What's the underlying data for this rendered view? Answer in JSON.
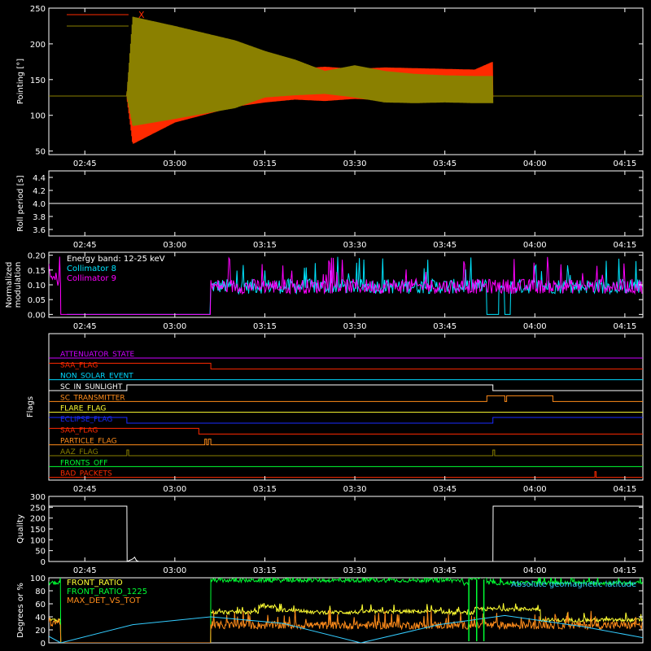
{
  "time_ticks": [
    "02:45",
    "03:00",
    "03:15",
    "03:30",
    "03:45",
    "04:00",
    "04:15"
  ],
  "chart_data": [
    {
      "type": "line",
      "ylabel": "Pointing [°]",
      "ylim": [
        45,
        250
      ],
      "yticks": [
        50,
        100,
        150,
        200,
        250
      ],
      "x_ticks": [
        "02:45",
        "03:00",
        "03:15",
        "03:30",
        "03:45",
        "04:00",
        "04:15"
      ],
      "legend": {
        "position": "top-left",
        "entries": [
          {
            "label": "X",
            "color": "#ff2a00"
          },
          {
            "label": "Y",
            "color": "#8a8000"
          }
        ]
      },
      "baseline": {
        "value": 127,
        "color": "#8a8000"
      },
      "series": [
        {
          "name": "X",
          "color": "#ff2a00",
          "kind": "band",
          "x": [
            "02:39",
            "02:52",
            "02:53",
            "03:00",
            "03:10",
            "03:15",
            "03:20",
            "03:25",
            "03:30",
            "03:35",
            "03:40",
            "03:45",
            "03:50",
            "03:53"
          ],
          "upper": [
            127,
            127,
            215,
            200,
            178,
            168,
            165,
            168,
            165,
            167,
            166,
            165,
            164,
            175
          ],
          "lower": [
            127,
            127,
            60,
            90,
            112,
            118,
            122,
            120,
            123,
            121,
            124,
            122,
            125,
            125
          ]
        },
        {
          "name": "Y",
          "color": "#8a8000",
          "kind": "band",
          "x": [
            "02:39",
            "02:52",
            "02:53",
            "03:00",
            "03:10",
            "03:15",
            "03:20",
            "03:25",
            "03:30",
            "03:35",
            "03:40",
            "03:45",
            "03:50",
            "03:53"
          ],
          "upper": [
            127,
            127,
            238,
            225,
            205,
            190,
            178,
            162,
            170,
            162,
            158,
            156,
            155,
            155
          ],
          "lower": [
            127,
            127,
            85,
            95,
            110,
            125,
            128,
            130,
            125,
            118,
            117,
            118,
            117,
            117
          ]
        }
      ]
    },
    {
      "type": "line",
      "ylabel": "Roll period [s]",
      "ylim": [
        3.5,
        4.5
      ],
      "yticks": [
        3.6,
        3.8,
        4.0,
        4.2,
        4.4
      ],
      "ytick_labels": [
        "3.6",
        "3.8",
        "4.0",
        "4.2",
        "4.4"
      ],
      "x_ticks": [
        "02:45",
        "03:00",
        "03:15",
        "03:30",
        "03:45",
        "04:00",
        "04:15"
      ],
      "series": [
        {
          "name": "",
          "color": "#ffffff",
          "x": [
            "02:39",
            "04:18"
          ],
          "values": [
            4.0,
            4.0
          ]
        }
      ]
    },
    {
      "type": "line",
      "ylabel": "Normalized modulation",
      "ylim": [
        -0.01,
        0.21
      ],
      "yticks": [
        0.0,
        0.05,
        0.1,
        0.15,
        0.2
      ],
      "ytick_labels": [
        "0.00",
        "0.05",
        "0.10",
        "0.15",
        "0.20"
      ],
      "x_ticks": [
        "02:45",
        "03:00",
        "03:15",
        "03:30",
        "03:45",
        "04:00",
        "04:15"
      ],
      "annotation": "Energy band: 12-25 keV",
      "legend": {
        "position": "top-left",
        "entries": [
          {
            "label": "Collimator 8",
            "color": "#00e5ff"
          },
          {
            "label": "Collimator 9",
            "color": "#ff00ff"
          }
        ]
      },
      "series": [
        {
          "name": "Collimator 8",
          "color": "#00e5ff",
          "noisy": true,
          "level": 0.095,
          "spread": 0.025,
          "segments": [
            [
              "02:42",
              "03:06",
              0
            ],
            [
              "03:06",
              "03:52",
              0.095
            ],
            [
              "03:52",
              "03:54",
              0
            ],
            [
              "03:54",
              "03:55",
              0.095
            ],
            [
              "03:55",
              "03:56",
              0
            ],
            [
              "03:56",
              "04:18",
              0.095
            ]
          ]
        },
        {
          "name": "Collimator 9",
          "color": "#ff00ff",
          "noisy": true,
          "level": 0.095,
          "spread": 0.025,
          "segments": [
            [
              "02:39",
              "02:41",
              0.12
            ],
            [
              "02:41",
              "03:06",
              0
            ],
            [
              "03:06",
              "04:18",
              0.095
            ]
          ]
        }
      ]
    },
    {
      "type": "step",
      "ylabel": "Flags",
      "x_ticks": [
        "02:45",
        "03:00",
        "03:15",
        "03:30",
        "03:45",
        "04:00",
        "04:15"
      ],
      "flags": [
        {
          "label": "ATTENUATOR_STATE",
          "color": "#cc00ff",
          "steps": []
        },
        {
          "label": "SAA_FLAG",
          "color": "#ff2a00",
          "steps": [
            [
              "02:39",
              1
            ],
            [
              "03:06",
              0
            ]
          ]
        },
        {
          "label": "NON_SOLAR_EVENT",
          "color": "#00d8ff",
          "steps": []
        },
        {
          "label": "SC_IN_SUNLIGHT",
          "color": "#ffffff",
          "steps": [
            [
              "02:39",
              0
            ],
            [
              "02:52",
              1
            ],
            [
              "03:53",
              0
            ]
          ]
        },
        {
          "label": "SC_TRANSMITTER",
          "color": "#ff8c1a",
          "steps": [
            [
              "02:39",
              0
            ],
            [
              "03:52",
              1
            ],
            [
              "03:55",
              0
            ],
            [
              "03:55.3",
              1
            ],
            [
              "04:03",
              0
            ]
          ]
        },
        {
          "label": "FLARE_FLAG",
          "color": "#ffff33",
          "steps": []
        },
        {
          "label": "ECLIPSE_FLAG",
          "color": "#1a2bff",
          "steps": [
            [
              "02:39",
              1
            ],
            [
              "02:52",
              0
            ],
            [
              "03:53",
              1
            ]
          ]
        },
        {
          "label": "SAA_FLAG",
          "color": "#ff2a00",
          "steps": [
            [
              "02:39",
              1
            ],
            [
              "03:04",
              0
            ]
          ]
        },
        {
          "label": "PARTICLE_FLAG",
          "color": "#ff8c1a",
          "steps": [
            [
              "02:39",
              0
            ],
            [
              "03:05",
              1
            ],
            [
              "03:05.3",
              0
            ],
            [
              "03:05.6",
              1
            ],
            [
              "03:06",
              0
            ]
          ]
        },
        {
          "label": "AAZ_FLAG",
          "color": "#8a8000",
          "steps": [
            [
              "02:39",
              0
            ],
            [
              "02:52",
              1
            ],
            [
              "02:52.3",
              0
            ],
            [
              "03:53",
              1
            ],
            [
              "03:53.3",
              0
            ]
          ]
        },
        {
          "label": "FRONTS_OFF",
          "color": "#00ff33",
          "steps": []
        },
        {
          "label": "BAD_PACKETS",
          "color": "#ff2a00",
          "steps": [
            [
              "02:39",
              0
            ],
            [
              "04:10",
              1
            ],
            [
              "04:10.2",
              0
            ]
          ]
        }
      ]
    },
    {
      "type": "line",
      "ylabel": "Quality",
      "ylim": [
        0,
        300
      ],
      "yticks": [
        0,
        50,
        100,
        150,
        200,
        250,
        300
      ],
      "x_ticks": [
        "02:45",
        "03:00",
        "03:15",
        "03:30",
        "03:45",
        "04:00",
        "04:15"
      ],
      "series": [
        {
          "name": "",
          "color": "#ffffff",
          "x": [
            "02:39",
            "02:52",
            "02:52.05",
            "02:53",
            "02:53.3",
            "02:53.6",
            "02:54",
            "03:53",
            "03:53.05",
            "04:18"
          ],
          "values": [
            255,
            255,
            0,
            12,
            20,
            4,
            0,
            0,
            255,
            255
          ]
        }
      ]
    },
    {
      "type": "line",
      "ylabel": "Degrees or %",
      "ylim": [
        0,
        100
      ],
      "yticks": [
        0,
        20,
        40,
        60,
        80,
        100
      ],
      "legend": {
        "position": "top-left",
        "entries": [
          {
            "label": "FRONT_RATIO",
            "color": "#ffff33"
          },
          {
            "label": "FRONT_RATIO_1225",
            "color": "#00ff33"
          },
          {
            "label": "MAX_DET_VS_TOT",
            "color": "#ff8c1a"
          }
        ]
      },
      "annotation": "Absolute geomagnetic latitude",
      "annotation_color": "#33ccff",
      "series": [
        {
          "name": "FRONT_RATIO",
          "color": "#ffff33",
          "noisy": true,
          "spread": 3,
          "segments": [
            [
              "02:39",
              "02:41",
              35
            ],
            [
              "02:41",
              "03:06",
              0
            ],
            [
              "03:06",
              "03:14",
              47
            ],
            [
              "03:14",
              "03:17",
              56
            ],
            [
              "03:17",
              "03:19",
              50
            ],
            [
              "03:19",
              "03:22",
              50
            ],
            [
              "03:22",
              "03:31",
              47
            ],
            [
              "03:31",
              "03:45",
              48
            ],
            [
              "03:45",
              "03:50",
              46
            ],
            [
              "03:50",
              "03:52",
              52
            ],
            [
              "03:52",
              "04:01",
              52
            ],
            [
              "04:01",
              "04:18",
              35
            ]
          ]
        },
        {
          "name": "FRONT_RATIO_1225",
          "color": "#00ff33",
          "noisy": true,
          "spread": 3,
          "segments": [
            [
              "02:39",
              "02:41",
              92
            ],
            [
              "02:41",
              "03:06",
              0
            ],
            [
              "03:06",
              "03:48",
              96
            ],
            [
              "03:48",
              "03:49",
              90
            ],
            [
              "03:49",
              "03:52",
              100
            ],
            [
              "03:52",
              "04:18",
              92
            ]
          ]
        },
        {
          "name": "MAX_DET_VS_TOT",
          "color": "#ff8c1a",
          "noisy": true,
          "spread": 6,
          "segments": [
            [
              "02:39",
              "02:41",
              32
            ],
            [
              "02:41",
              "03:06",
              0
            ],
            [
              "03:06",
              "04:18",
              27
            ]
          ]
        },
        {
          "name": "Absolute geomagnetic latitude",
          "color": "#33ccff",
          "x": [
            "02:39",
            "02:41",
            "02:53",
            "03:06",
            "03:18",
            "03:31",
            "03:44",
            "03:55",
            "04:08",
            "04:18"
          ],
          "values": [
            10,
            0,
            28,
            40,
            30,
            0,
            28,
            42,
            25,
            8
          ]
        }
      ]
    }
  ]
}
